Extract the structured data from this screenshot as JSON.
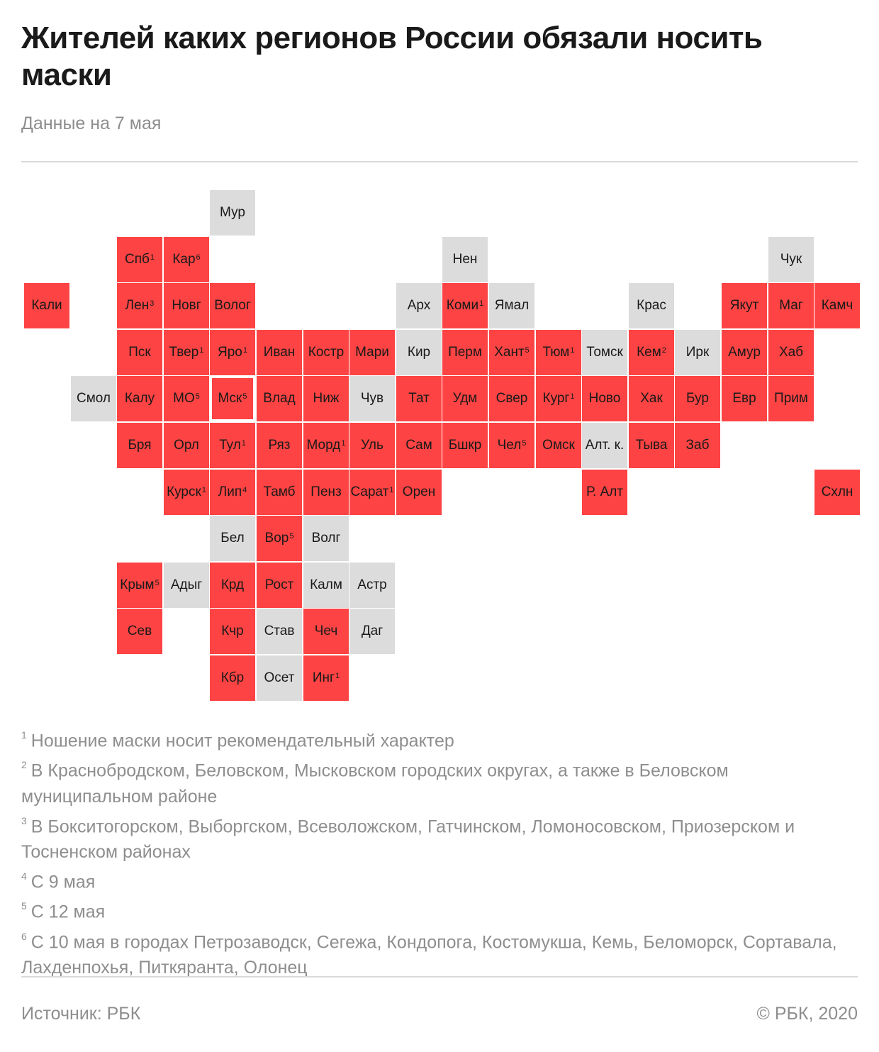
{
  "title": "Жителей каких регионов России обязали носить маски",
  "subtitle": "Данные на 7 мая",
  "colors": {
    "mandatory": "#fd4343",
    "not_mandatory": "#dcdcdc",
    "highlight": "#ffffff"
  },
  "regions": [
    {
      "name": "Мур",
      "col": 4,
      "row": 0,
      "status": "gray"
    },
    {
      "name": "Спб",
      "col": 2,
      "row": 1,
      "status": "red",
      "note": "1"
    },
    {
      "name": "Кар",
      "col": 3,
      "row": 1,
      "status": "red",
      "note": "6"
    },
    {
      "name": "Нен",
      "col": 9,
      "row": 1,
      "status": "gray"
    },
    {
      "name": "Чук",
      "col": 16,
      "row": 1,
      "status": "gray"
    },
    {
      "name": "Кали",
      "col": 0,
      "row": 2,
      "status": "red"
    },
    {
      "name": "Лен",
      "col": 2,
      "row": 2,
      "status": "red",
      "note": "3"
    },
    {
      "name": "Новг",
      "col": 3,
      "row": 2,
      "status": "red"
    },
    {
      "name": "Волог",
      "col": 4,
      "row": 2,
      "status": "red"
    },
    {
      "name": "Арх",
      "col": 8,
      "row": 2,
      "status": "gray"
    },
    {
      "name": "Коми",
      "col": 9,
      "row": 2,
      "status": "red",
      "note": "1"
    },
    {
      "name": "Ямал",
      "col": 10,
      "row": 2,
      "status": "gray"
    },
    {
      "name": "Крас",
      "col": 13,
      "row": 2,
      "status": "gray"
    },
    {
      "name": "Якут",
      "col": 15,
      "row": 2,
      "status": "red"
    },
    {
      "name": "Маг",
      "col": 16,
      "row": 2,
      "status": "red"
    },
    {
      "name": "Камч",
      "col": 17,
      "row": 2,
      "status": "red"
    },
    {
      "name": "Пск",
      "col": 2,
      "row": 3,
      "status": "red"
    },
    {
      "name": "Твер",
      "col": 3,
      "row": 3,
      "status": "red",
      "note": "1"
    },
    {
      "name": "Яро",
      "col": 4,
      "row": 3,
      "status": "red",
      "note": "1"
    },
    {
      "name": "Иван",
      "col": 5,
      "row": 3,
      "status": "red"
    },
    {
      "name": "Костр",
      "col": 6,
      "row": 3,
      "status": "red"
    },
    {
      "name": "Мари",
      "col": 7,
      "row": 3,
      "status": "red"
    },
    {
      "name": "Кир",
      "col": 8,
      "row": 3,
      "status": "gray"
    },
    {
      "name": "Перм",
      "col": 9,
      "row": 3,
      "status": "red"
    },
    {
      "name": "Хант",
      "col": 10,
      "row": 3,
      "status": "red",
      "note": "5"
    },
    {
      "name": "Тюм",
      "col": 11,
      "row": 3,
      "status": "red",
      "note": "1"
    },
    {
      "name": "Томск",
      "col": 12,
      "row": 3,
      "status": "gray"
    },
    {
      "name": "Кем",
      "col": 13,
      "row": 3,
      "status": "red",
      "note": "2"
    },
    {
      "name": "Ирк",
      "col": 14,
      "row": 3,
      "status": "gray"
    },
    {
      "name": "Амур",
      "col": 15,
      "row": 3,
      "status": "red"
    },
    {
      "name": "Хаб",
      "col": 16,
      "row": 3,
      "status": "red"
    },
    {
      "name": "Смол",
      "col": 1,
      "row": 4,
      "status": "gray"
    },
    {
      "name": "Калу",
      "col": 2,
      "row": 4,
      "status": "red"
    },
    {
      "name": "МО",
      "col": 3,
      "row": 4,
      "status": "red",
      "note": "5"
    },
    {
      "name": "Мск",
      "col": 4,
      "row": 4,
      "status": "red",
      "note": "5",
      "highlight": true
    },
    {
      "name": "Влад",
      "col": 5,
      "row": 4,
      "status": "red"
    },
    {
      "name": "Ниж",
      "col": 6,
      "row": 4,
      "status": "red"
    },
    {
      "name": "Чув",
      "col": 7,
      "row": 4,
      "status": "gray"
    },
    {
      "name": "Тат",
      "col": 8,
      "row": 4,
      "status": "red"
    },
    {
      "name": "Удм",
      "col": 9,
      "row": 4,
      "status": "red"
    },
    {
      "name": "Свер",
      "col": 10,
      "row": 4,
      "status": "red"
    },
    {
      "name": "Кург",
      "col": 11,
      "row": 4,
      "status": "red",
      "note": "1"
    },
    {
      "name": "Ново",
      "col": 12,
      "row": 4,
      "status": "red"
    },
    {
      "name": "Хак",
      "col": 13,
      "row": 4,
      "status": "red"
    },
    {
      "name": "Бур",
      "col": 14,
      "row": 4,
      "status": "red"
    },
    {
      "name": "Евр",
      "col": 15,
      "row": 4,
      "status": "red"
    },
    {
      "name": "Прим",
      "col": 16,
      "row": 4,
      "status": "red"
    },
    {
      "name": "Бря",
      "col": 2,
      "row": 5,
      "status": "red"
    },
    {
      "name": "Орл",
      "col": 3,
      "row": 5,
      "status": "red"
    },
    {
      "name": "Тул",
      "col": 4,
      "row": 5,
      "status": "red",
      "note": "1"
    },
    {
      "name": "Ряз",
      "col": 5,
      "row": 5,
      "status": "red"
    },
    {
      "name": "Морд",
      "col": 6,
      "row": 5,
      "status": "red",
      "note": "1"
    },
    {
      "name": "Уль",
      "col": 7,
      "row": 5,
      "status": "red"
    },
    {
      "name": "Сам",
      "col": 8,
      "row": 5,
      "status": "red"
    },
    {
      "name": "Бшкр",
      "col": 9,
      "row": 5,
      "status": "red"
    },
    {
      "name": "Чел",
      "col": 10,
      "row": 5,
      "status": "red",
      "note": "5"
    },
    {
      "name": "Омск",
      "col": 11,
      "row": 5,
      "status": "red"
    },
    {
      "name": "Алт. к.",
      "col": 12,
      "row": 5,
      "status": "gray"
    },
    {
      "name": "Тыва",
      "col": 13,
      "row": 5,
      "status": "red"
    },
    {
      "name": "Заб",
      "col": 14,
      "row": 5,
      "status": "red"
    },
    {
      "name": "Курск",
      "col": 3,
      "row": 6,
      "status": "red",
      "note": "1"
    },
    {
      "name": "Лип",
      "col": 4,
      "row": 6,
      "status": "red",
      "note": "4"
    },
    {
      "name": "Тамб",
      "col": 5,
      "row": 6,
      "status": "red"
    },
    {
      "name": "Пенз",
      "col": 6,
      "row": 6,
      "status": "red"
    },
    {
      "name": "Сарат",
      "col": 7,
      "row": 6,
      "status": "red",
      "note": "1"
    },
    {
      "name": "Орен",
      "col": 8,
      "row": 6,
      "status": "red"
    },
    {
      "name": "Р. Алт",
      "col": 12,
      "row": 6,
      "status": "red"
    },
    {
      "name": "Схлн",
      "col": 17,
      "row": 6,
      "status": "red"
    },
    {
      "name": "Бел",
      "col": 4,
      "row": 7,
      "status": "gray"
    },
    {
      "name": "Вор",
      "col": 5,
      "row": 7,
      "status": "red",
      "note": "5"
    },
    {
      "name": "Волг",
      "col": 6,
      "row": 7,
      "status": "gray"
    },
    {
      "name": "Крым",
      "col": 2,
      "row": 8,
      "status": "red",
      "note": "5"
    },
    {
      "name": "Адыг",
      "col": 3,
      "row": 8,
      "status": "gray"
    },
    {
      "name": "Крд",
      "col": 4,
      "row": 8,
      "status": "red"
    },
    {
      "name": "Рост",
      "col": 5,
      "row": 8,
      "status": "red"
    },
    {
      "name": "Калм",
      "col": 6,
      "row": 8,
      "status": "gray"
    },
    {
      "name": "Астр",
      "col": 7,
      "row": 8,
      "status": "gray"
    },
    {
      "name": "Сев",
      "col": 2,
      "row": 9,
      "status": "red"
    },
    {
      "name": "Кчр",
      "col": 4,
      "row": 9,
      "status": "red"
    },
    {
      "name": "Став",
      "col": 5,
      "row": 9,
      "status": "gray"
    },
    {
      "name": "Чеч",
      "col": 6,
      "row": 9,
      "status": "red"
    },
    {
      "name": "Даг",
      "col": 7,
      "row": 9,
      "status": "gray"
    },
    {
      "name": "Кбр",
      "col": 4,
      "row": 10,
      "status": "red"
    },
    {
      "name": "Осет",
      "col": 5,
      "row": 10,
      "status": "gray"
    },
    {
      "name": "Инг",
      "col": 6,
      "row": 10,
      "status": "red",
      "note": "1"
    }
  ],
  "footnotes": [
    {
      "num": "1",
      "text": "Ношение маски носит рекомендательный характер"
    },
    {
      "num": "2",
      "text": "В Краснобродском, Беловском, Мысковском городских округах, а также в Беловском муниципальном районе"
    },
    {
      "num": "3",
      "text": "В Бокситогорском, Выборгском, Всеволожском, Гатчинском, Ломоносовском, Приозерском и Тосненском районах"
    },
    {
      "num": "4",
      "text": "С 9 мая"
    },
    {
      "num": "5",
      "text": "С 12 мая"
    },
    {
      "num": "6",
      "text": "С 10 мая в городах Петрозаводск, Сегежа, Кондопога, Костомукша, Кемь, Беломорск, Сортавала, Лахденпохья, Питкяранта, Олонец"
    }
  ],
  "source": "Источник: РБК",
  "copyright": "© РБК, 2020"
}
